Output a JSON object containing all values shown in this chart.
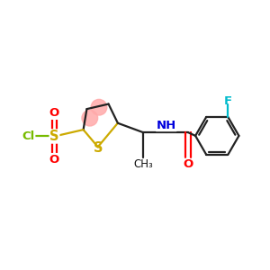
{
  "bg_color": "#ffffff",
  "figsize": [
    3.0,
    3.0
  ],
  "dpi": 100,
  "thiophene_s_color": "#ccaa00",
  "sulfonyl_s_color": "#ccaa00",
  "cl_color": "#77bb00",
  "o_color": "#ff0000",
  "n_color": "#0000dd",
  "f_color": "#00bbcc",
  "bond_color": "#222222",
  "aromatic_fill": "#ffaaaa",
  "line_width": 1.6,
  "font_size": 9.5,
  "font_size_small": 8.5,
  "xlim": [
    0,
    1
  ],
  "ylim": [
    0,
    1
  ]
}
